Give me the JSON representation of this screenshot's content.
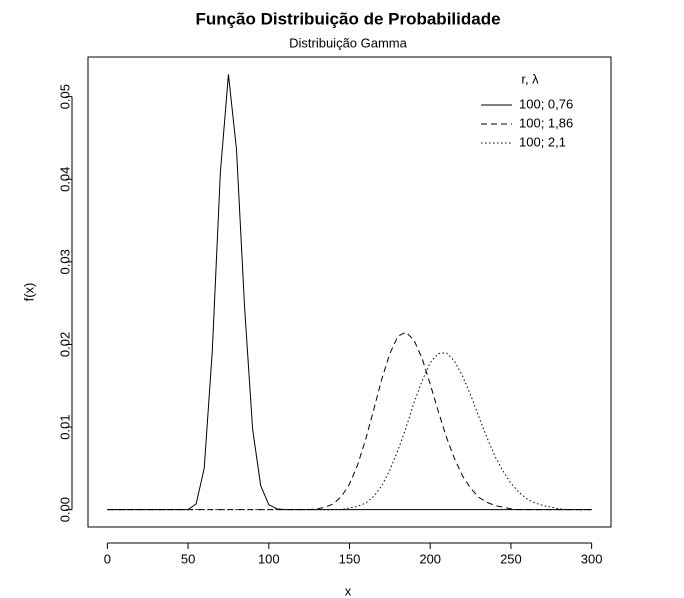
{
  "chart_data": {
    "type": "line",
    "title": "Função Distribuição de Probabilidade",
    "subtitle": "Distribuição Gamma",
    "x_label": "x",
    "y_label": "f(x)",
    "legend_title": "r, λ",
    "legend_position": "top-right",
    "x": [
      0,
      5,
      10,
      15,
      20,
      25,
      30,
      35,
      40,
      45,
      50,
      55,
      60,
      65,
      70,
      75,
      80,
      85,
      90,
      95,
      100,
      105,
      110,
      115,
      120,
      125,
      130,
      135,
      140,
      145,
      150,
      155,
      160,
      165,
      170,
      175,
      180,
      185,
      190,
      195,
      200,
      205,
      210,
      215,
      220,
      225,
      230,
      235,
      240,
      245,
      250,
      255,
      260,
      265,
      270,
      275,
      280,
      285,
      290,
      295,
      300
    ],
    "series": [
      {
        "name": "100; 0,76",
        "color": "#000000",
        "linestyle": "solid",
        "values": [
          0,
          0,
          0,
          0,
          0,
          0,
          0,
          0,
          0,
          0,
          0,
          0.0007,
          0.005,
          0.0192,
          0.0408,
          0.0527,
          0.0436,
          0.0245,
          0.0097,
          0.0029,
          0.0006,
          0.0001,
          0,
          0,
          0,
          0,
          0,
          0,
          0,
          0,
          0,
          0,
          0,
          0,
          0,
          0,
          0,
          0,
          0,
          0,
          0,
          0,
          0,
          0,
          0,
          0,
          0,
          0,
          0,
          0,
          0,
          0,
          0,
          0,
          0,
          0,
          0,
          0,
          0,
          0,
          0
        ]
      },
      {
        "name": "100; 1,86",
        "color": "#000000",
        "linestyle": "dashed",
        "values": [
          0,
          0,
          0,
          0,
          0,
          0,
          0,
          0,
          0,
          0,
          0,
          0,
          0,
          0,
          0,
          0,
          0,
          0,
          0,
          0,
          0,
          0,
          0,
          0,
          0,
          0,
          0.0001,
          0.0003,
          0.0007,
          0.0016,
          0.0031,
          0.0054,
          0.0085,
          0.0121,
          0.0158,
          0.0189,
          0.021,
          0.0215,
          0.0205,
          0.0183,
          0.0152,
          0.0119,
          0.0088,
          0.0062,
          0.0041,
          0.0026,
          0.0015,
          0.0009,
          0.0005,
          0.0003,
          0.0001,
          0,
          0,
          0,
          0,
          0,
          0,
          0,
          0,
          0,
          0
        ]
      },
      {
        "name": "100; 2,1",
        "color": "#000000",
        "linestyle": "dotted",
        "values": [
          0,
          0,
          0,
          0,
          0,
          0,
          0,
          0,
          0,
          0,
          0,
          0,
          0,
          0,
          0,
          0,
          0,
          0,
          0,
          0,
          0,
          0,
          0,
          0,
          0,
          0,
          0,
          0,
          0,
          0,
          0.0002,
          0.0004,
          0.0008,
          0.0016,
          0.0029,
          0.0048,
          0.0072,
          0.0099,
          0.013,
          0.0156,
          0.0178,
          0.0189,
          0.019,
          0.018,
          0.0162,
          0.0139,
          0.0113,
          0.0088,
          0.0065,
          0.0047,
          0.0032,
          0.0021,
          0.0013,
          0.0008,
          0.0005,
          0.0003,
          0.0001,
          0,
          0,
          0,
          0
        ]
      }
    ],
    "xlim": [
      -12,
      312
    ],
    "xticks": [
      0,
      50,
      100,
      150,
      200,
      250,
      300
    ],
    "ylim": [
      -0.0021,
      0.0548
    ],
    "yticks": [
      {
        "value": 0,
        "label": "0.00"
      },
      0.01,
      0.02,
      0.03,
      0.04,
      0.05
    ],
    "grid": false
  }
}
